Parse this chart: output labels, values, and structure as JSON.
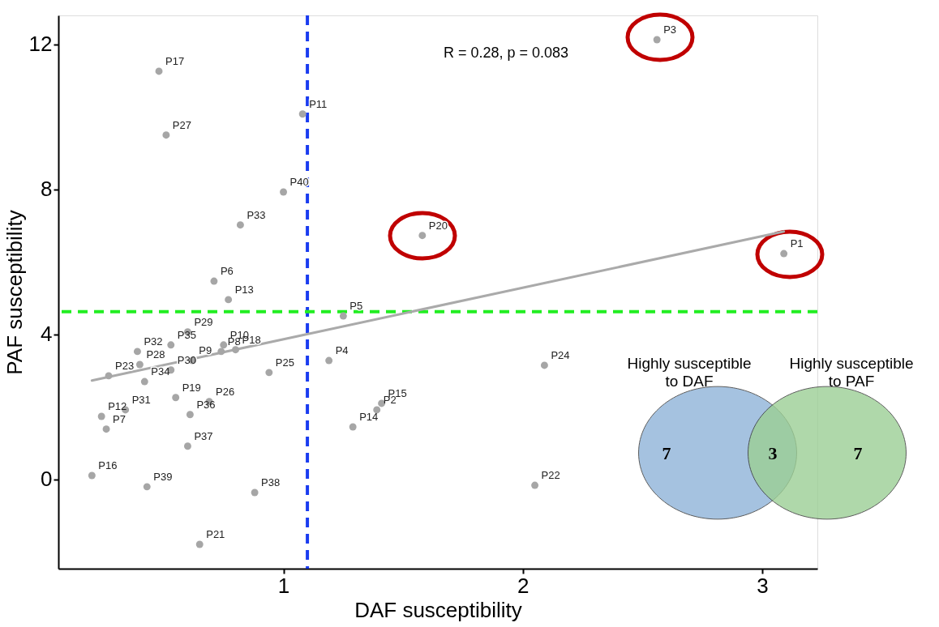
{
  "chart_data": [
    {
      "type": "scatter",
      "xlabel": "DAF susceptibility",
      "ylabel": "PAF susceptibility",
      "xlim": [
        0.06,
        3.23
      ],
      "ylim": [
        -2.46,
        12.8
      ],
      "xticks": [
        1,
        2,
        3
      ],
      "yticks": [
        0,
        4,
        8,
        12
      ],
      "marker": "circle",
      "series": [
        {
          "color": "#a6a6a6",
          "x": [
            3.09,
            1.39,
            2.56,
            1.19,
            1.25,
            0.71,
            0.26,
            0.74,
            0.62,
            0.75,
            1.08,
            0.24,
            0.77,
            1.29,
            1.41,
            0.2,
            0.48,
            0.8,
            0.55,
            1.58,
            0.65,
            2.05,
            0.27,
            2.09,
            0.94,
            0.69,
            0.51,
            0.4,
            0.6,
            0.53,
            0.34,
            0.39,
            0.82,
            0.42,
            0.53,
            0.61,
            0.6,
            0.88,
            0.43,
            1.0
          ],
          "values": [
            6.23,
            1.92,
            12.13,
            3.28,
            4.51,
            5.47,
            1.39,
            3.53,
            3.28,
            3.71,
            10.08,
            1.74,
            4.96,
            1.45,
            2.1,
            0.11,
            11.26,
            3.58,
            2.26,
            6.73,
            -1.79,
            -0.16,
            2.86,
            3.15,
            2.95,
            2.15,
            9.5,
            3.17,
            4.07,
            3.02,
            1.92,
            3.53,
            7.02,
            2.7,
            3.71,
            1.79,
            0.92,
            -0.36,
            -0.2,
            7.93
          ],
          "value_labels": [
            "P1",
            "P2",
            "P3",
            "P4",
            "P5",
            "P6",
            "P7",
            "P8",
            "P9",
            "P10",
            "P11",
            "P12",
            "P13",
            "P14",
            "P15",
            "P16",
            "P17",
            "P18",
            "P19",
            "P20",
            "P21",
            "P22",
            "P23",
            "P24",
            "P25",
            "P26",
            "P27",
            "P28",
            "P29",
            "P30",
            "P31",
            "P32",
            "P33",
            "P34",
            "P35",
            "P36",
            "P37",
            "P38",
            "P39",
            "P40"
          ]
        },
        {
          "type": "line",
          "marker": "none",
          "color": "#aaaaaa",
          "x": [
            0.2,
            3.09
          ],
          "values": [
            2.73,
            6.84
          ]
        }
      ],
      "ref_lines": [
        {
          "axis": "x",
          "value": 1.1,
          "color": "#1a3cf0",
          "line_style": "dashed"
        },
        {
          "axis": "y",
          "value": 4.63,
          "color": "#22ee22",
          "line_style": "dashed"
        }
      ],
      "annotations": [
        "R = 0.28, p = 0.083"
      ]
    },
    {
      "type": "other",
      "annotations": [
        "Highly susceptible\nto DAF",
        "Highly susceptible\nto PAF",
        "7",
        "3",
        "7"
      ]
    }
  ]
}
